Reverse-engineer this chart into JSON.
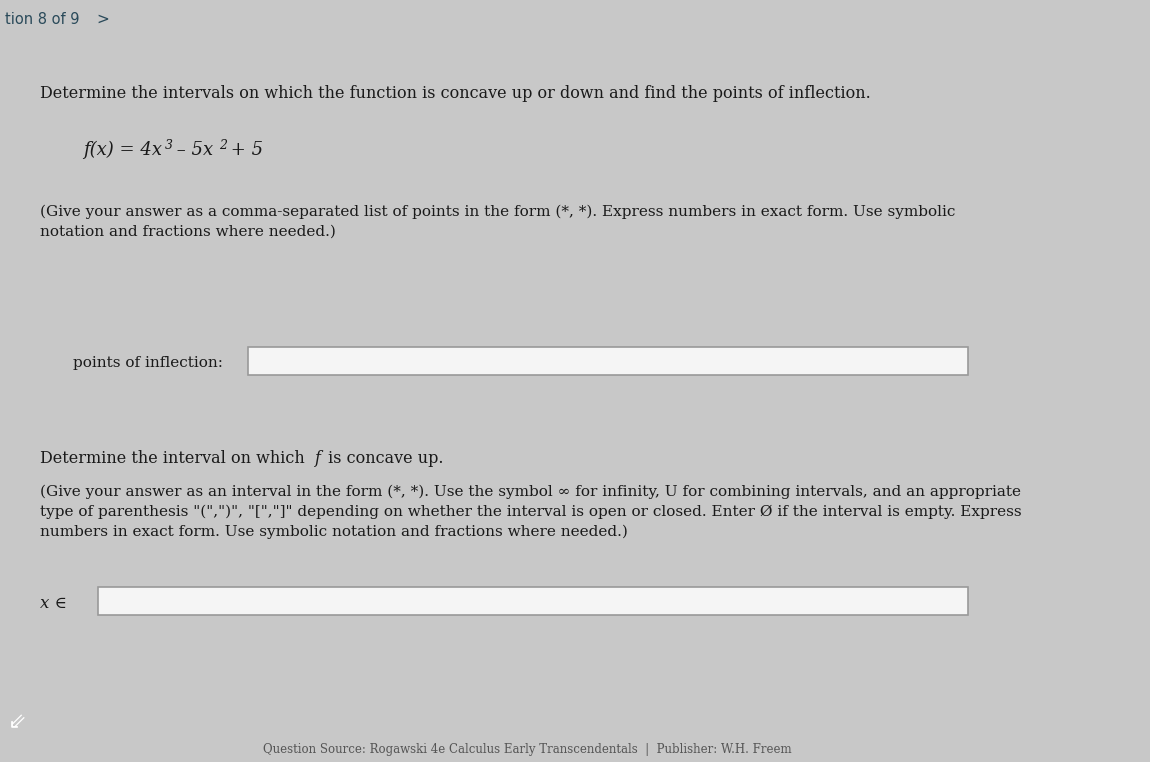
{
  "bg_color": "#c8c8c8",
  "card_color": "#ebebeb",
  "card_border_color": "#aaaaaa",
  "header_bg": "#c8c8c8",
  "header_text": "tion 8 of 9",
  "title_text": "Determine the intervals on which the function is concave up or down and find the points of inflection.",
  "function_line1": "f(x) = 4x",
  "function_sup3": "3",
  "function_line2": " – 5x",
  "function_sup2": "2",
  "function_line3": " + 5",
  "instruction1_line1": "(Give your answer as a comma-separated list of points in the form (*, *). Express numbers in exact form. Use symbolic",
  "instruction1_line2": "notation and fractions where needed.)",
  "label1": "points of inflection:",
  "section2_title": "Determine the interval on which f is concave up.",
  "instruction2_line1": "(Give your answer as an interval in the form (*, *). Use the symbol ∞ for infinity, U for combining intervals, and an appropriate",
  "instruction2_line2": "type of parenthesis \"(\",\")\", \"[\",\"]\" depending on whether the interval is open or closed. Enter Ø if the interval is empty. Express",
  "instruction2_line3": "numbers in exact form. Use symbolic notation and fractions where needed.)",
  "label2": "x ∈",
  "footer_text": "Question Source: Rogawski 4e Calculus Early Transcendentals  |  Publisher: W.H. Freem",
  "input_box_color": "#f5f5f5",
  "input_box_border": "#999999",
  "text_color": "#1a1a1a",
  "footer_color": "#555555",
  "right_dark_color": "#444444",
  "header_text_color": "#2a4a5a",
  "back_button_color": "#2a5070"
}
